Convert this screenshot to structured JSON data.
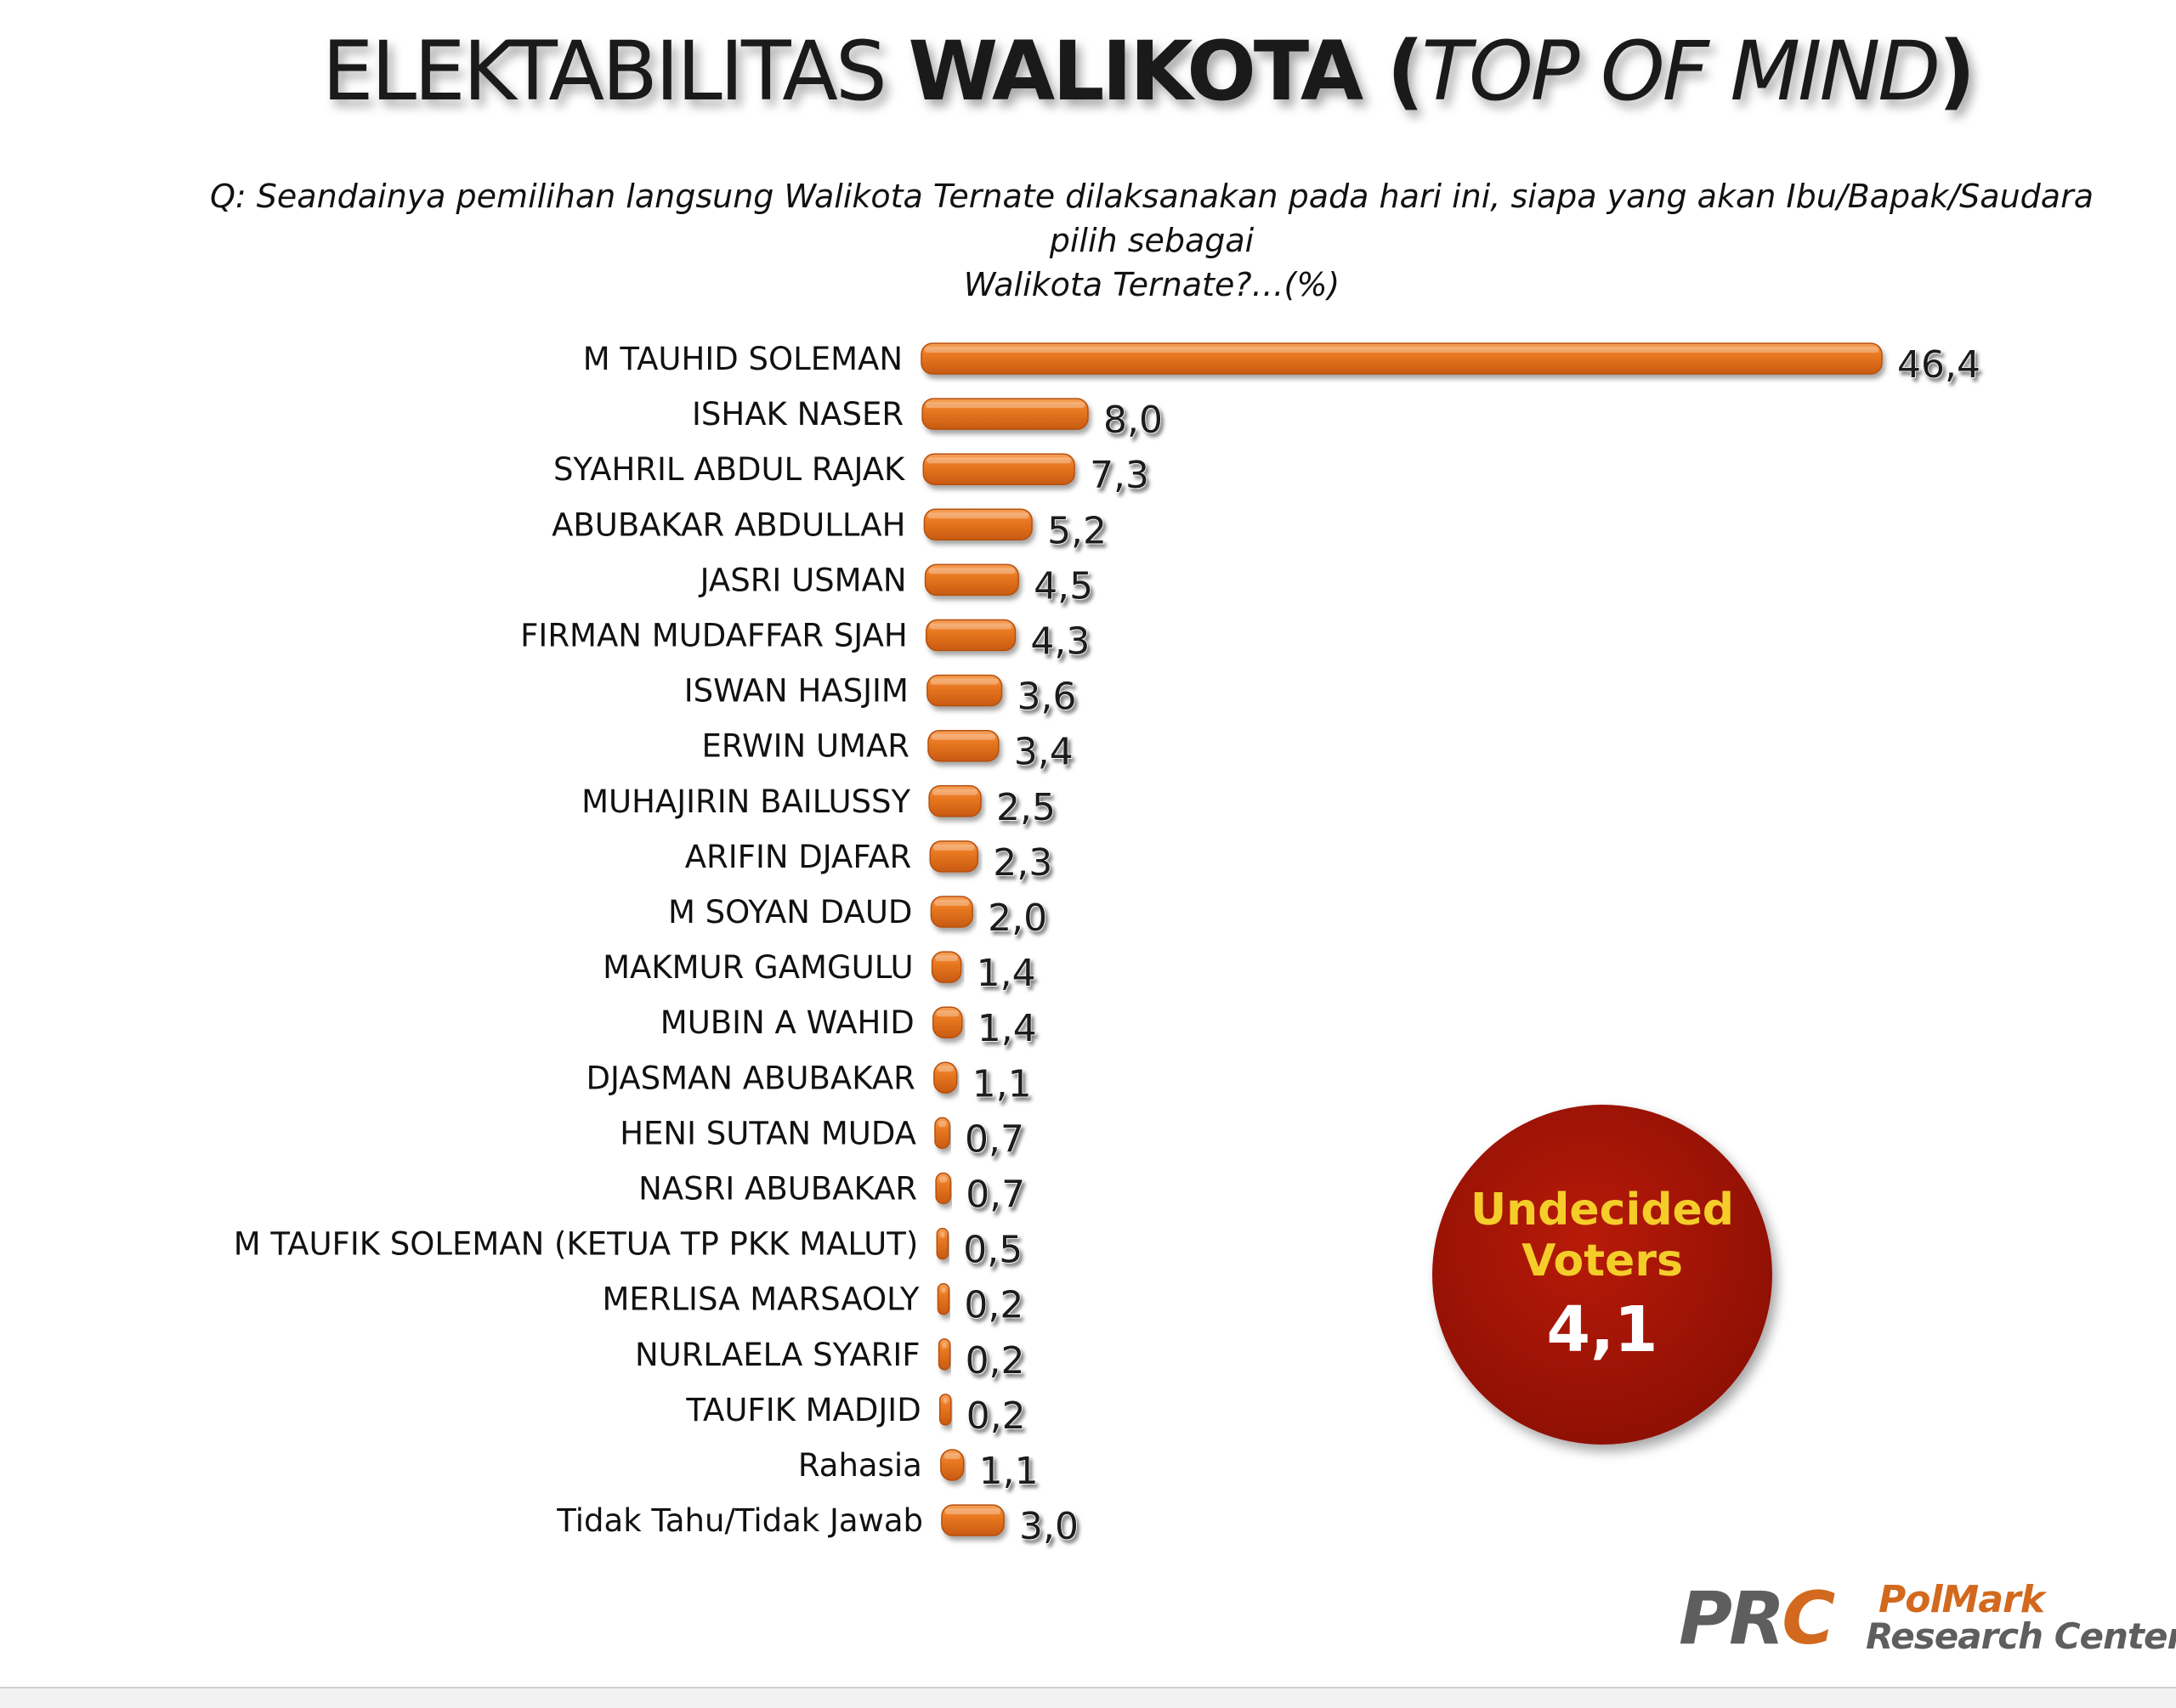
{
  "chart_data": {
    "type": "bar",
    "orientation": "horizontal",
    "title": {
      "part1": "ELEKTABILITAS ",
      "part2": "WALIKOTA",
      "part3": " (",
      "part4": "TOP OF MIND",
      "part5": ")"
    },
    "subtitle": {
      "line1": "Q:  Seandainya pemilihan langsung Walikota Ternate dilaksanakan pada hari ini, siapa yang akan Ibu/Bapak/Saudara  pilih sebagai",
      "line2": "Walikota Ternate?…(%)"
    },
    "categories": [
      "M TAUHID SOLEMAN",
      "ISHAK NASER",
      "SYAHRIL ABDUL RAJAK",
      "ABUBAKAR ABDULLAH",
      "JASRI USMAN",
      "FIRMAN MUDAFFAR SJAH",
      "ISWAN HASJIM",
      "ERWIN UMAR",
      "MUHAJIRIN BAILUSSY",
      "ARIFIN DJAFAR",
      "M SOYAN DAUD",
      "MAKMUR GAMGULU",
      "MUBIN A WAHID",
      "DJASMAN ABUBAKAR",
      "HENI SUTAN MUDA",
      "NASRI ABUBAKAR",
      "M TAUFIK SOLEMAN (KETUA TP PKK MALUT)",
      "MERLISA MARSAOLY",
      "NURLAELA SYARIF",
      "TAUFIK MADJID",
      "Rahasia",
      "Tidak Tahu/Tidak Jawab"
    ],
    "values": [
      46.4,
      8.0,
      7.3,
      5.2,
      4.5,
      4.3,
      3.6,
      3.4,
      2.5,
      2.3,
      2.0,
      1.4,
      1.4,
      1.1,
      0.7,
      0.7,
      0.5,
      0.2,
      0.2,
      0.2,
      1.1,
      3.0
    ],
    "value_labels": [
      "46,4",
      "8,0",
      "7,3",
      "5,2",
      "4,5",
      "4,3",
      "3,6",
      "3,4",
      "2,5",
      "2,3",
      "2,0",
      "1,4",
      "1,4",
      "1,1",
      "0,7",
      "0,7",
      "0,5",
      "0,2",
      "0,2",
      "0,2",
      "1,1",
      "3,0"
    ],
    "xlim": [
      0,
      46.4
    ],
    "grid": false,
    "legend": "none",
    "bar_color": "#e8731c"
  },
  "undecided": {
    "line1": "Undecided",
    "line2": "Voters",
    "value": "4,1",
    "circle_color": "#a0140a",
    "text_color": "#f4cd2a"
  },
  "logo": {
    "prc_p": "PR",
    "prc_c": "C",
    "polmark": "PolMark",
    "research_center": "Research Center"
  }
}
